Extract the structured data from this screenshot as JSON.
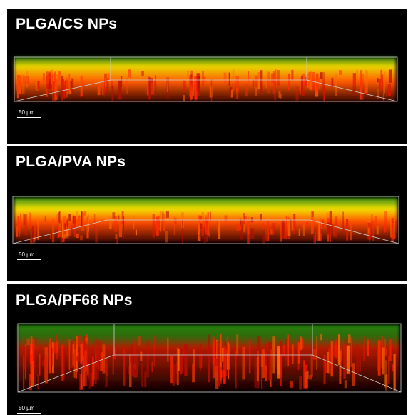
{
  "panels": [
    {
      "title": "PLGA/CS NPs",
      "scale_bar": "50 µm"
    },
    {
      "title": "PLGA/PVA NPs",
      "scale_bar": "50 µm"
    },
    {
      "title": "PLGA/PF68 NPs",
      "scale_bar": "50 µm"
    }
  ],
  "colors": {
    "background": "#000000",
    "green_channel": "#3fcf1a",
    "red_channel": "#ff2a00",
    "overlap": "#f5e000"
  }
}
